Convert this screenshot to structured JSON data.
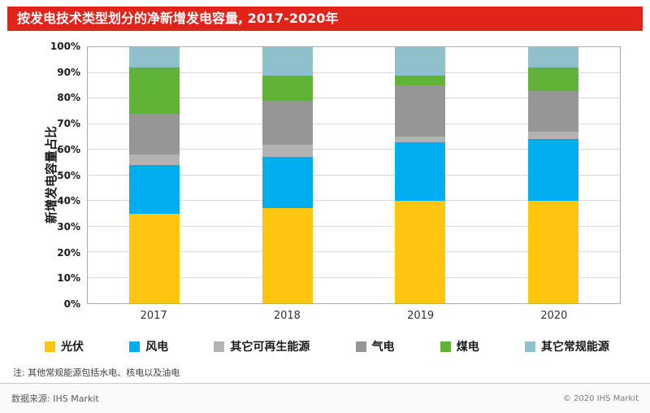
{
  "title": "按发电技术类型划分的净新增发电容量, 2017-2020年",
  "note": "注: 其他常规能源包括水电、核电以及油电",
  "source": "数据来源: IHS Markit",
  "copyright": "© 2020 IHS Markit",
  "colors": {
    "banner_red": "#E2231A",
    "solar_yellow": "#FFC610",
    "wind_blue": "#00ADEE",
    "other_renewable_gray": "#B3B3B3",
    "gas_gray": "#969696",
    "coal_green": "#5FB336",
    "other_conventional_teal": "#8FC1CB"
  },
  "chart_data": {
    "type": "bar",
    "stacked": true,
    "title": "按发电技术类型划分的净新增发电容量, 2017-2020年",
    "ylabel": "新增发电容量占比",
    "xlabel": "",
    "ylim": [
      0,
      100
    ],
    "grid": true,
    "legend_position": "bottom",
    "categories": [
      "2017",
      "2018",
      "2019",
      "2020"
    ],
    "yticks": [
      "0%",
      "10%",
      "20%",
      "30%",
      "40%",
      "50%",
      "60%",
      "70%",
      "80%",
      "90%",
      "100%"
    ],
    "series": [
      {
        "name": "光伏",
        "color": "#FFC610",
        "values": [
          35,
          37,
          40,
          40
        ]
      },
      {
        "name": "风电",
        "color": "#00ADEE",
        "values": [
          19,
          20,
          23,
          24
        ]
      },
      {
        "name": "其它可再生能源",
        "color": "#B3B3B3",
        "values": [
          4,
          5,
          2,
          3
        ]
      },
      {
        "name": "气电",
        "color": "#969696",
        "values": [
          16,
          17,
          20,
          16
        ]
      },
      {
        "name": "煤电",
        "color": "#5FB336",
        "values": [
          18,
          10,
          4,
          9
        ]
      },
      {
        "name": "其它常规能源",
        "color": "#8FC1CB",
        "values": [
          8,
          11,
          11,
          8
        ]
      }
    ]
  }
}
